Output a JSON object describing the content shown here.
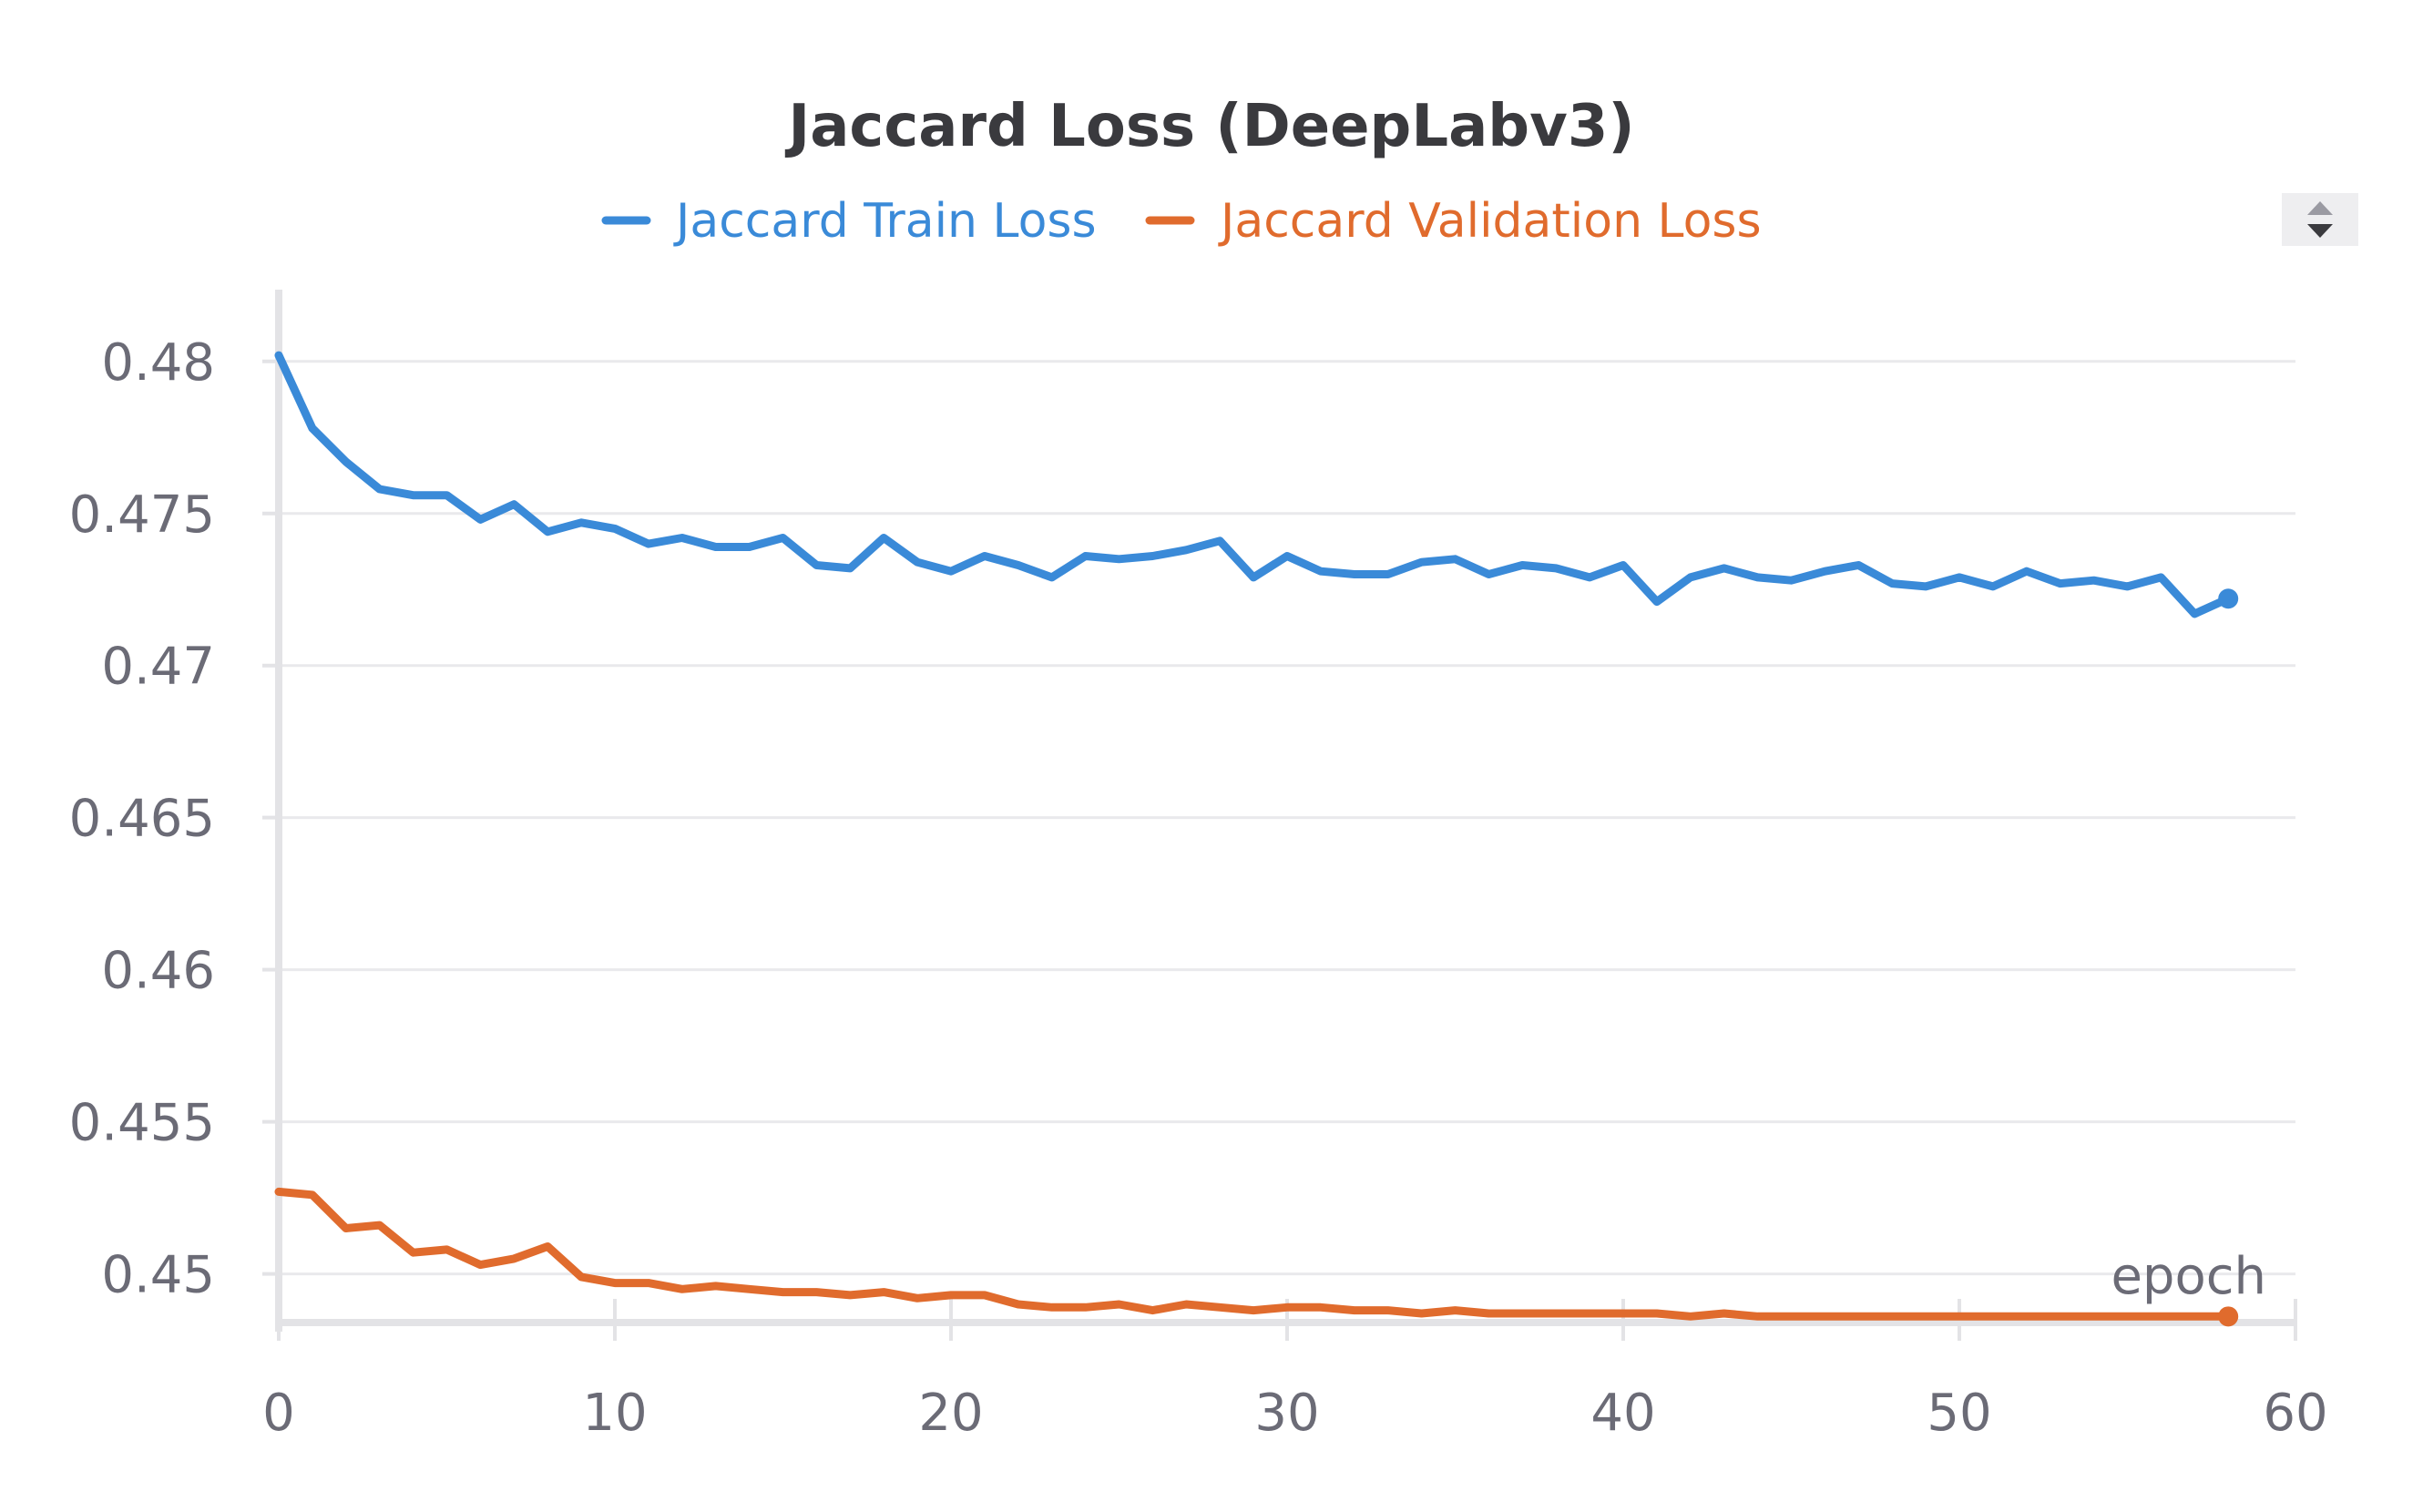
{
  "chart_data": {
    "type": "line",
    "title": "Jaccard Loss (DeepLabv3)",
    "xlabel": "epoch",
    "ylabel": "",
    "xlim": [
      0,
      60
    ],
    "ylim": [
      0.4484,
      0.482
    ],
    "x_ticks": [
      "0",
      "10",
      "20",
      "30",
      "40",
      "50",
      "60"
    ],
    "x_tick_values": [
      0,
      10,
      20,
      30,
      40,
      50,
      60
    ],
    "y_ticks": [
      "0.45",
      "0.455",
      "0.46",
      "0.465",
      "0.47",
      "0.475",
      "0.48"
    ],
    "y_tick_values": [
      0.45,
      0.455,
      0.46,
      0.465,
      0.47,
      0.475,
      0.48
    ],
    "grid": true,
    "legend_position": "top-center",
    "x": [
      0,
      1,
      2,
      3,
      4,
      5,
      6,
      7,
      8,
      9,
      10,
      11,
      12,
      13,
      14,
      15,
      16,
      17,
      18,
      19,
      20,
      21,
      22,
      23,
      24,
      25,
      26,
      27,
      28,
      29,
      30,
      31,
      32,
      33,
      34,
      35,
      36,
      37,
      38,
      39,
      40,
      41,
      42,
      43,
      44,
      45,
      46,
      47,
      48,
      49,
      50,
      51,
      52,
      53,
      54,
      55,
      56,
      57,
      58
    ],
    "series": [
      {
        "name": "Jaccard Train Loss",
        "color": "#3a8ad8",
        "values": [
          0.4802,
          0.4778,
          0.4767,
          0.4758,
          0.4756,
          0.4756,
          0.4748,
          0.4753,
          0.4744,
          0.4747,
          0.4745,
          0.474,
          0.4742,
          0.4739,
          0.4739,
          0.4742,
          0.4733,
          0.4732,
          0.4742,
          0.4734,
          0.4731,
          0.4736,
          0.4733,
          0.4729,
          0.4736,
          0.4735,
          0.4736,
          0.4738,
          0.4741,
          0.4729,
          0.4736,
          0.4731,
          0.473,
          0.473,
          0.4734,
          0.4735,
          0.473,
          0.4733,
          0.4732,
          0.4729,
          0.4733,
          0.4721,
          0.4729,
          0.4732,
          0.4729,
          0.4728,
          0.4731,
          0.4733,
          0.4727,
          0.4726,
          0.4729,
          0.4726,
          0.4731,
          0.4727,
          0.4728,
          0.4726,
          0.4729,
          0.4717,
          0.4722
        ]
      },
      {
        "name": "Jaccard Validation Loss",
        "color": "#e06b2d",
        "values": [
          0.4527,
          0.4526,
          0.4515,
          0.4516,
          0.4507,
          0.4508,
          0.4503,
          0.4505,
          0.4509,
          0.4499,
          0.4497,
          0.4497,
          0.4495,
          0.4496,
          0.4495,
          0.4494,
          0.4494,
          0.4493,
          0.4494,
          0.4492,
          0.4493,
          0.4493,
          0.449,
          0.4489,
          0.4489,
          0.449,
          0.4488,
          0.449,
          0.4489,
          0.4488,
          0.4489,
          0.4489,
          0.4488,
          0.4488,
          0.4487,
          0.4488,
          0.4487,
          0.4487,
          0.4487,
          0.4487,
          0.4487,
          0.4487,
          0.4486,
          0.4487,
          0.4486,
          0.4486,
          0.4486,
          0.4486,
          0.4486,
          0.4486,
          0.4486,
          0.4486,
          0.4486,
          0.4486,
          0.4486,
          0.4486,
          0.4486,
          0.4486,
          0.4486
        ]
      }
    ]
  }
}
